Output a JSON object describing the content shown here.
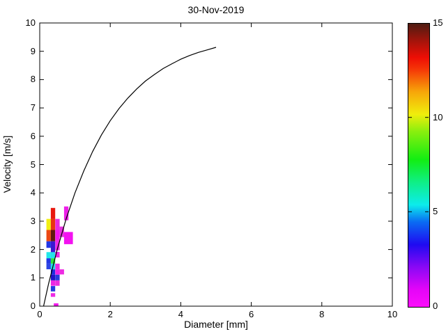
{
  "title": "30-Nov-2019",
  "axes": {
    "xlabel": "Diameter [mm]",
    "ylabel": "Velocity [m/s]",
    "xlim": [
      0,
      10
    ],
    "ylim": [
      0,
      10
    ],
    "xticks": [
      0,
      2,
      4,
      6,
      8,
      10
    ],
    "yticks": [
      0,
      1,
      2,
      3,
      4,
      5,
      6,
      7,
      8,
      9,
      10
    ]
  },
  "colorbar": {
    "min": 0,
    "max": 15,
    "ticks": [
      0,
      5,
      10,
      15
    ],
    "gradient_stops": [
      [
        0.0,
        "#fb0dfb"
      ],
      [
        0.06,
        "#e505f8"
      ],
      [
        0.14,
        "#8a08f5"
      ],
      [
        0.22,
        "#1f0af1"
      ],
      [
        0.3,
        "#0a6cf3"
      ],
      [
        0.36,
        "#0cecec"
      ],
      [
        0.44,
        "#0fef86"
      ],
      [
        0.52,
        "#12ee12"
      ],
      [
        0.62,
        "#8aef0e"
      ],
      [
        0.68,
        "#f0ee0c"
      ],
      [
        0.76,
        "#f7a509"
      ],
      [
        0.84,
        "#f53507"
      ],
      [
        0.88,
        "#ee0e05"
      ],
      [
        0.94,
        "#a3140b"
      ],
      [
        1.0,
        "#4e1c12"
      ]
    ]
  },
  "chart_data": {
    "type": "heatmap",
    "title": "30-Nov-2019",
    "xlabel": "Diameter [mm]",
    "ylabel": "Velocity [m/s]",
    "xlim": [
      0,
      10
    ],
    "ylim": [
      0,
      10
    ],
    "grid": false,
    "colorbar_range": [
      0,
      15
    ],
    "colorbar_ticks": [
      0,
      5,
      10,
      15
    ],
    "curve": {
      "name": "terminal-velocity-curve",
      "color": "#000000",
      "points": [
        [
          0.11,
          0.01
        ],
        [
          0.25,
          0.79
        ],
        [
          0.5,
          2.02
        ],
        [
          0.75,
          3.08
        ],
        [
          1.0,
          4.0
        ],
        [
          1.25,
          4.78
        ],
        [
          1.5,
          5.46
        ],
        [
          1.75,
          6.05
        ],
        [
          2.0,
          6.55
        ],
        [
          2.25,
          6.98
        ],
        [
          2.5,
          7.35
        ],
        [
          2.75,
          7.67
        ],
        [
          3.0,
          7.95
        ],
        [
          3.25,
          8.18
        ],
        [
          3.5,
          8.39
        ],
        [
          3.75,
          8.56
        ],
        [
          4.0,
          8.72
        ],
        [
          4.25,
          8.85
        ],
        [
          4.5,
          8.96
        ],
        [
          4.75,
          9.05
        ],
        [
          5.0,
          9.14
        ]
      ]
    },
    "cells": [
      {
        "d": [
          0.315,
          0.44
        ],
        "v": [
          3.08,
          3.47
        ],
        "value": 12,
        "color": "#e8190f"
      },
      {
        "d": [
          0.69,
          0.815
        ],
        "v": [
          3.03,
          3.52
        ],
        "value": 1,
        "color": "#ee1fe9"
      },
      {
        "d": [
          0.19,
          0.315
        ],
        "v": [
          2.69,
          3.08
        ],
        "value": 10,
        "color": "#f1ee13"
      },
      {
        "d": [
          0.315,
          0.44
        ],
        "v": [
          2.69,
          3.08
        ],
        "value": 12,
        "color": "#e93312"
      },
      {
        "d": [
          0.44,
          0.565
        ],
        "v": [
          2.69,
          3.08
        ],
        "value": 1,
        "color": "#ea2be0"
      },
      {
        "d": [
          0.19,
          0.315
        ],
        "v": [
          2.29,
          2.69
        ],
        "value": 11,
        "color": "#ec4814"
      },
      {
        "d": [
          0.315,
          0.44
        ],
        "v": [
          2.29,
          2.69
        ],
        "value": 15,
        "color": "#5f190f"
      },
      {
        "d": [
          0.44,
          0.565
        ],
        "v": [
          2.29,
          2.69
        ],
        "value": 0.5,
        "color": "#f315f0"
      },
      {
        "d": [
          0.565,
          0.69
        ],
        "v": [
          2.44,
          2.81
        ],
        "value": 1,
        "color": "#e72edd"
      },
      {
        "d": [
          0.69,
          0.94
        ],
        "v": [
          2.19,
          2.62
        ],
        "value": 0.5,
        "color": "#f312f0"
      },
      {
        "d": [
          0.19,
          0.315
        ],
        "v": [
          2.06,
          2.29
        ],
        "value": 3.5,
        "color": "#2336e6"
      },
      {
        "d": [
          0.315,
          0.44
        ],
        "v": [
          1.87,
          2.29
        ],
        "value": 3,
        "color": "#3a17d2"
      },
      {
        "d": [
          0.44,
          0.565
        ],
        "v": [
          1.97,
          2.36
        ],
        "value": 1,
        "color": "#ee27e6"
      },
      {
        "d": [
          0.19,
          0.315
        ],
        "v": [
          1.69,
          1.91
        ],
        "value": 5,
        "color": "#20e7e9"
      },
      {
        "d": [
          0.315,
          0.44
        ],
        "v": [
          1.69,
          1.91
        ],
        "value": 5,
        "color": "#26e2e9"
      },
      {
        "d": [
          0.44,
          0.565
        ],
        "v": [
          1.72,
          1.92
        ],
        "value": 1,
        "color": "#ed2be3"
      },
      {
        "d": [
          0.19,
          0.315
        ],
        "v": [
          1.5,
          1.69
        ],
        "value": 4,
        "color": "#2337e4"
      },
      {
        "d": [
          0.315,
          0.44
        ],
        "v": [
          1.5,
          1.69
        ],
        "value": 7,
        "color": "#2de83b"
      },
      {
        "d": [
          0.19,
          0.315
        ],
        "v": [
          1.3,
          1.5
        ],
        "value": 4,
        "color": "#2d46e5"
      },
      {
        "d": [
          0.315,
          0.44
        ],
        "v": [
          1.3,
          1.5
        ],
        "value": 5,
        "color": "#28dce7"
      },
      {
        "d": [
          0.44,
          0.565
        ],
        "v": [
          1.3,
          1.5
        ],
        "value": 1,
        "color": "#ed2be3"
      },
      {
        "d": [
          0.315,
          0.44
        ],
        "v": [
          1.11,
          1.3
        ],
        "value": 3.5,
        "color": "#1e2edf"
      },
      {
        "d": [
          0.44,
          0.565
        ],
        "v": [
          1.11,
          1.3
        ],
        "value": 1,
        "color": "#ef22e8"
      },
      {
        "d": [
          0.565,
          0.69
        ],
        "v": [
          1.12,
          1.3
        ],
        "value": 1,
        "color": "#ee2ae2"
      },
      {
        "d": [
          0.315,
          0.44
        ],
        "v": [
          0.91,
          1.11
        ],
        "value": 3,
        "color": "#2212c8"
      },
      {
        "d": [
          0.44,
          0.565
        ],
        "v": [
          0.91,
          1.11
        ],
        "value": 3.5,
        "color": "#2a3adc"
      },
      {
        "d": [
          0.315,
          0.44
        ],
        "v": [
          0.72,
          0.91
        ],
        "value": 1,
        "color": "#ed25e3"
      },
      {
        "d": [
          0.44,
          0.565
        ],
        "v": [
          0.72,
          0.91
        ],
        "value": 1,
        "color": "#ea2cdf"
      },
      {
        "d": [
          0.315,
          0.44
        ],
        "v": [
          0.52,
          0.71
        ],
        "value": 3.5,
        "color": "#2638e1"
      },
      {
        "d": [
          0.315,
          0.44
        ],
        "v": [
          0.33,
          0.46
        ],
        "value": 1,
        "color": "#ee29e4"
      },
      {
        "d": [
          0.4,
          0.53
        ],
        "v": [
          0.0,
          0.1
        ],
        "value": 1,
        "color": "#f117eb"
      }
    ]
  }
}
